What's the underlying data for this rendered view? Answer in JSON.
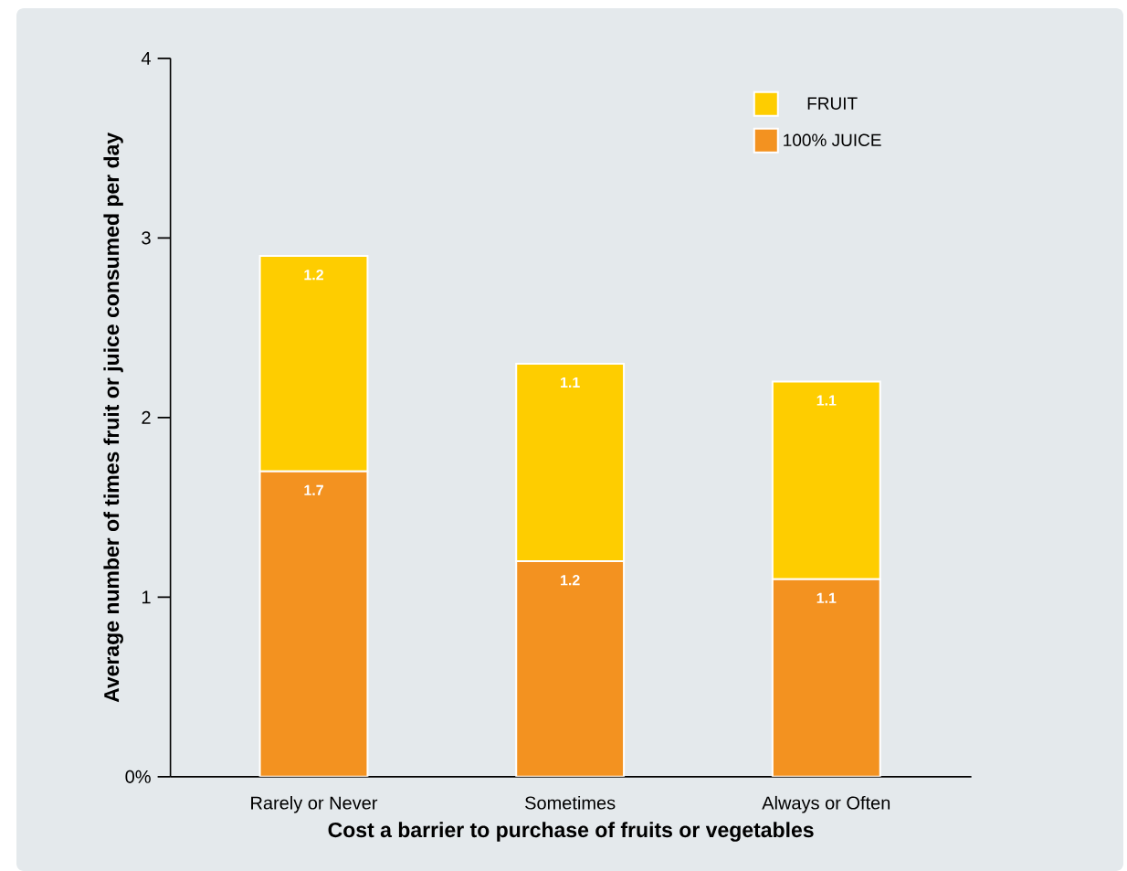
{
  "chart_data": {
    "type": "bar",
    "stacked": true,
    "xlabel": "Cost a barrier to purchase of fruits or vegetables",
    "ylabel": "Average number of times fruit or juice consumed per day",
    "categories": [
      "Rarely or Never",
      "Sometimes",
      "Always or Often"
    ],
    "series": [
      {
        "name": "100% JUICE",
        "color": "#f39220",
        "values": [
          1.7,
          1.2,
          1.1
        ]
      },
      {
        "name": "FRUIT",
        "color": "#fecd00",
        "values": [
          1.2,
          1.1,
          1.1
        ]
      }
    ],
    "ylim": [
      0,
      4
    ],
    "yticks": [
      {
        "value": 0,
        "label": "0%"
      },
      1,
      2,
      3,
      4
    ],
    "data_labels": true,
    "legend": "top right",
    "grid": false
  }
}
